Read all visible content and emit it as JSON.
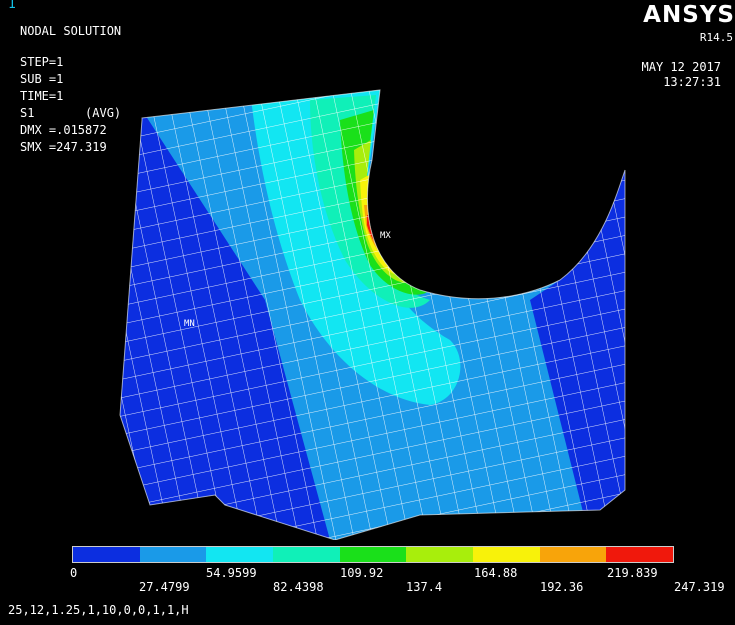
{
  "window": {
    "marker": "1"
  },
  "header": {
    "title": "NODAL SOLUTION",
    "lines": [
      "STEP=1",
      "SUB =1",
      "TIME=1",
      "S1       (AVG)",
      "DMX =.015872",
      "SMX =247.319"
    ],
    "logo": "ANSYS",
    "version": "R14.5",
    "date": "MAY 12 2017",
    "time": "13:27:31"
  },
  "plot": {
    "max_label": "MX",
    "min_label": "MN"
  },
  "legend": {
    "colors": [
      "#0c2ee0",
      "#1a9ae8",
      "#12e6f2",
      "#10f0b8",
      "#1ae01a",
      "#a8ee0c",
      "#f8f20a",
      "#f8a40a",
      "#f0180c"
    ],
    "values_top": [
      "0",
      "54.9599",
      "109.92",
      "164.88",
      "219.839"
    ],
    "values_bottom": [
      "27.4799",
      "82.4398",
      "137.4",
      "192.36",
      "247.319"
    ]
  },
  "footer": {
    "command": "25,12,1.25,1,10,0,0,1,1,H"
  }
}
